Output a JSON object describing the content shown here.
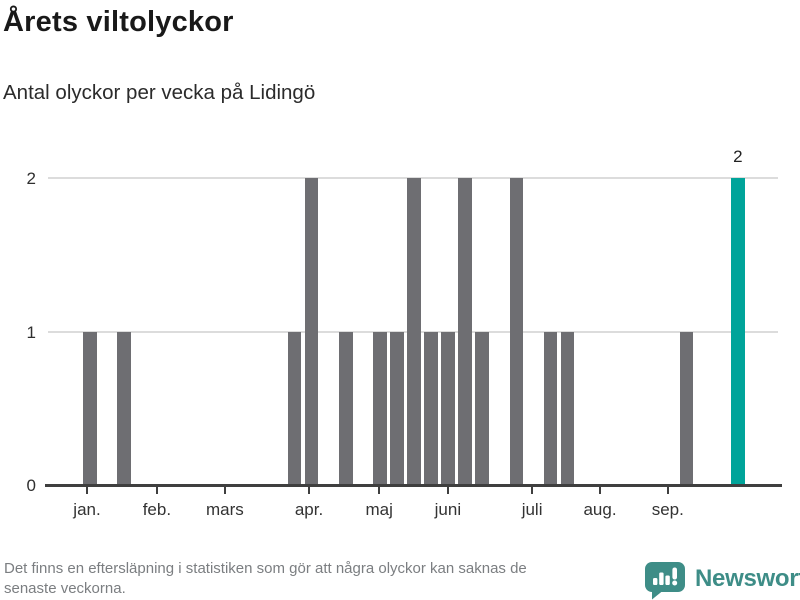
{
  "header": {
    "title": "Årets viltolyckor",
    "subtitle": "Antal olyckor per vecka på Lidingö"
  },
  "chart_data": {
    "type": "bar",
    "title": "Årets viltolyckor",
    "subtitle": "Antal olyckor per vecka på Lidingö",
    "x_unit": "vecka",
    "ylabel": "",
    "ylim": [
      0,
      2
    ],
    "yticks": [
      0,
      1,
      2
    ],
    "grid": "horizontal",
    "values": [
      0,
      0,
      1,
      0,
      1,
      0,
      0,
      0,
      0,
      0,
      0,
      0,
      0,
      0,
      1,
      2,
      0,
      1,
      0,
      1,
      1,
      2,
      1,
      1,
      2,
      1,
      0,
      2,
      0,
      1,
      1,
      0,
      0,
      0,
      0,
      0,
      0,
      1,
      0,
      0,
      2,
      0,
      0
    ],
    "highlight_index": 40,
    "highlight_value_label": "2",
    "months": [
      {
        "label": "jan.",
        "slot": 2.29
      },
      {
        "label": "feb.",
        "slot": 6.39
      },
      {
        "label": "mars",
        "slot": 10.38
      },
      {
        "label": "apr.",
        "slot": 15.31
      },
      {
        "label": "maj",
        "slot": 19.43
      },
      {
        "label": "juni",
        "slot": 23.46
      },
      {
        "label": "juli",
        "slot": 28.4
      },
      {
        "label": "aug.",
        "slot": 32.38
      },
      {
        "label": "sep.",
        "slot": 36.36
      }
    ],
    "colors": {
      "bar": "#6e6e72",
      "highlight": "#00a49a",
      "grid": "#dcdcdc",
      "axis": "#3f3f3f"
    }
  },
  "footer": {
    "note_line1": "Det finns en eftersläpning i statistiken som gör att några olyckor kan saknas de",
    "note_line2": "senaste veckorna.",
    "brand": "Newsworthy",
    "brand_color": "#3e8d87"
  }
}
